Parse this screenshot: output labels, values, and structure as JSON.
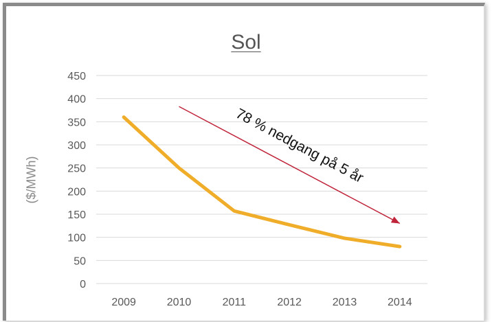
{
  "chart_data": {
    "type": "line",
    "title": "Sol",
    "xlabel": "",
    "ylabel": "($/MWh)",
    "categories": [
      "2009",
      "2010",
      "2011",
      "2012",
      "2013",
      "2014"
    ],
    "series": [
      {
        "values": [
          360,
          250,
          157,
          127,
          98,
          80
        ],
        "color": "#f0ad2a"
      }
    ],
    "ylim": [
      0,
      450
    ],
    "yticks": [
      0,
      50,
      100,
      150,
      200,
      250,
      300,
      350,
      400,
      450
    ],
    "grid": true,
    "annotation": {
      "text": "78 % nedgang på 5 år",
      "arrow_color": "#c0243b",
      "from": {
        "x": "2010",
        "y": 383
      },
      "to": {
        "x": "2014",
        "y": 130
      }
    }
  }
}
